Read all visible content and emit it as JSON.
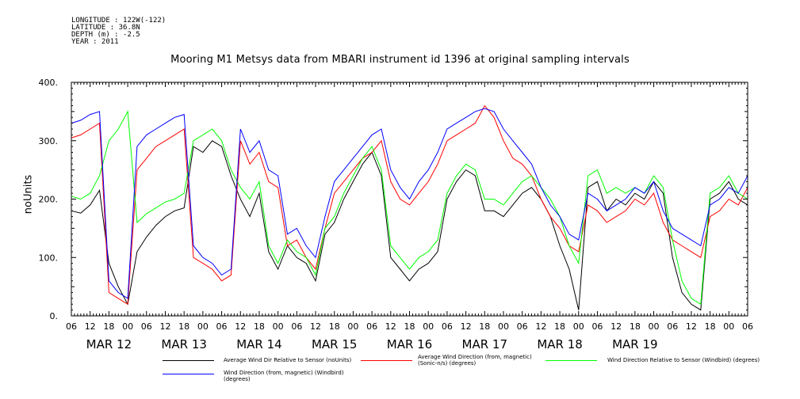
{
  "header": {
    "longitude": "LONGITUDE : 122W(-122)",
    "latitude": "LATITUDE : 36.8N",
    "depth": "DEPTH (m) : -2.5",
    "year": "YEAR : 2011"
  },
  "chart_data": {
    "type": "line",
    "title": "Mooring M1 Metsys data from MBARI instrument id 1396 at original sampling intervals",
    "xlabel": "",
    "ylabel": "noUnits",
    "xlim_hours": [
      0,
      216
    ],
    "ylim": [
      0,
      400
    ],
    "yticks": [
      0,
      100,
      200,
      300,
      400
    ],
    "ytick_labels": [
      "0.",
      "100.",
      "200.",
      "300.",
      "400."
    ],
    "hour_ticks": [
      "06",
      "12",
      "18",
      "00",
      "06",
      "12",
      "18",
      "00",
      "06",
      "12",
      "18",
      "00",
      "06",
      "12",
      "18",
      "00",
      "06",
      "12",
      "18",
      "00",
      "06",
      "12",
      "18",
      "00",
      "06",
      "12",
      "18",
      "00",
      "06",
      "12",
      "18",
      "00",
      "06",
      "12",
      "18",
      "00",
      "06"
    ],
    "date_labels": [
      {
        "label": "MAR 12",
        "hour": 12
      },
      {
        "label": "MAR 13",
        "hour": 36
      },
      {
        "label": "MAR 14",
        "hour": 60
      },
      {
        "label": "MAR 15",
        "hour": 84
      },
      {
        "label": "MAR 16",
        "hour": 108
      },
      {
        "label": "MAR 17",
        "hour": 132
      },
      {
        "label": "MAR 18",
        "hour": 156
      },
      {
        "label": "MAR 19",
        "hour": 180
      }
    ],
    "grid": false,
    "legend_position": "bottom",
    "series": [
      {
        "name": "Average Wind Dir Relative to Sensor (noUnits)",
        "color": "#000000",
        "x": [
          0,
          3,
          6,
          9,
          12,
          15,
          18,
          21,
          24,
          27,
          30,
          33,
          36,
          39,
          42,
          45,
          48,
          51,
          54,
          57,
          60,
          63,
          66,
          69,
          72,
          75,
          78,
          81,
          84,
          87,
          90,
          93,
          96,
          99,
          102,
          105,
          108,
          111,
          114,
          117,
          120,
          123,
          126,
          129,
          132,
          135,
          138,
          141,
          144,
          147,
          150,
          153,
          156,
          159,
          162,
          165,
          168,
          171,
          174,
          177,
          180,
          183,
          186,
          189,
          192,
          195,
          198,
          201,
          204,
          207,
          210,
          213,
          216
        ],
        "y": [
          180,
          176,
          190,
          215,
          90,
          50,
          20,
          110,
          135,
          155,
          170,
          180,
          185,
          290,
          280,
          300,
          290,
          240,
          200,
          170,
          210,
          110,
          80,
          120,
          100,
          90,
          60,
          140,
          160,
          200,
          230,
          260,
          280,
          240,
          100,
          80,
          60,
          80,
          90,
          110,
          200,
          230,
          250,
          240,
          180,
          180,
          170,
          190,
          210,
          220,
          200,
          170,
          120,
          80,
          10,
          220,
          230,
          180,
          200,
          190,
          210,
          200,
          230,
          210,
          100,
          40,
          20,
          10,
          200,
          210,
          230,
          200,
          190
        ]
      },
      {
        "name": "Average Wind Direction (from, magnetic) (Sonic-n/s) (degrees)",
        "color": "#ff0000",
        "x": [
          0,
          3,
          6,
          9,
          12,
          15,
          18,
          21,
          24,
          27,
          30,
          33,
          36,
          39,
          42,
          45,
          48,
          51,
          54,
          57,
          60,
          63,
          66,
          69,
          72,
          75,
          78,
          81,
          84,
          87,
          90,
          93,
          96,
          99,
          102,
          105,
          108,
          111,
          114,
          117,
          120,
          123,
          126,
          129,
          132,
          135,
          138,
          141,
          144,
          147,
          150,
          153,
          156,
          159,
          162,
          165,
          168,
          171,
          174,
          177,
          180,
          183,
          186,
          189,
          192,
          195,
          198,
          201,
          204,
          207,
          210,
          213,
          216
        ],
        "y": [
          305,
          310,
          320,
          330,
          40,
          30,
          20,
          250,
          270,
          290,
          300,
          310,
          320,
          100,
          90,
          80,
          60,
          70,
          300,
          260,
          280,
          230,
          220,
          120,
          130,
          100,
          80,
          150,
          210,
          230,
          250,
          270,
          280,
          300,
          230,
          200,
          190,
          210,
          230,
          260,
          300,
          310,
          320,
          330,
          360,
          340,
          300,
          270,
          260,
          240,
          200,
          170,
          150,
          120,
          110,
          190,
          180,
          160,
          170,
          180,
          200,
          190,
          210,
          160,
          130,
          120,
          110,
          100,
          170,
          180,
          200,
          190,
          220
        ]
      },
      {
        "name": "Wind Direction Relative to Sensor (Windbird) (degrees)",
        "color": "#00ff00",
        "x": [
          0,
          3,
          6,
          9,
          12,
          15,
          18,
          21,
          24,
          27,
          30,
          33,
          36,
          39,
          42,
          45,
          48,
          51,
          54,
          57,
          60,
          63,
          66,
          69,
          72,
          75,
          78,
          81,
          84,
          87,
          90,
          93,
          96,
          99,
          102,
          105,
          108,
          111,
          114,
          117,
          120,
          123,
          126,
          129,
          132,
          135,
          138,
          141,
          144,
          147,
          150,
          153,
          156,
          159,
          162,
          165,
          168,
          171,
          174,
          177,
          180,
          183,
          186,
          189,
          192,
          195,
          198,
          201,
          204,
          207,
          210,
          213,
          216
        ],
        "y": [
          205,
          200,
          210,
          240,
          300,
          320,
          350,
          160,
          175,
          185,
          195,
          200,
          210,
          300,
          310,
          320,
          300,
          250,
          220,
          200,
          230,
          120,
          90,
          130,
          110,
          100,
          70,
          150,
          170,
          210,
          240,
          270,
          290,
          250,
          120,
          100,
          80,
          100,
          110,
          130,
          210,
          240,
          260,
          250,
          200,
          200,
          190,
          210,
          230,
          240,
          220,
          200,
          170,
          120,
          90,
          240,
          250,
          210,
          220,
          210,
          220,
          210,
          240,
          220,
          130,
          60,
          30,
          20,
          210,
          220,
          240,
          210,
          200
        ]
      },
      {
        "name": "Wind Direction (from, magnetic) (Windbird) (degrees)",
        "color": "#0000ff",
        "x": [
          0,
          3,
          6,
          9,
          12,
          15,
          18,
          21,
          24,
          27,
          30,
          33,
          36,
          39,
          42,
          45,
          48,
          51,
          54,
          57,
          60,
          63,
          66,
          69,
          72,
          75,
          78,
          81,
          84,
          87,
          90,
          93,
          96,
          99,
          102,
          105,
          108,
          111,
          114,
          117,
          120,
          123,
          126,
          129,
          132,
          135,
          138,
          141,
          144,
          147,
          150,
          153,
          156,
          159,
          162,
          165,
          168,
          171,
          174,
          177,
          180,
          183,
          186,
          189,
          192,
          195,
          198,
          201,
          204,
          207,
          210,
          213,
          216
        ],
        "y": [
          330,
          335,
          345,
          350,
          60,
          40,
          30,
          290,
          310,
          320,
          330,
          340,
          345,
          120,
          100,
          90,
          70,
          80,
          320,
          280,
          300,
          250,
          240,
          140,
          150,
          120,
          100,
          170,
          230,
          250,
          270,
          290,
          310,
          320,
          250,
          220,
          200,
          230,
          250,
          280,
          320,
          330,
          340,
          350,
          355,
          350,
          320,
          300,
          280,
          260,
          220,
          190,
          170,
          140,
          130,
          210,
          200,
          180,
          190,
          200,
          220,
          210,
          230,
          180,
          150,
          140,
          130,
          120,
          190,
          200,
          220,
          210,
          240
        ]
      }
    ]
  }
}
